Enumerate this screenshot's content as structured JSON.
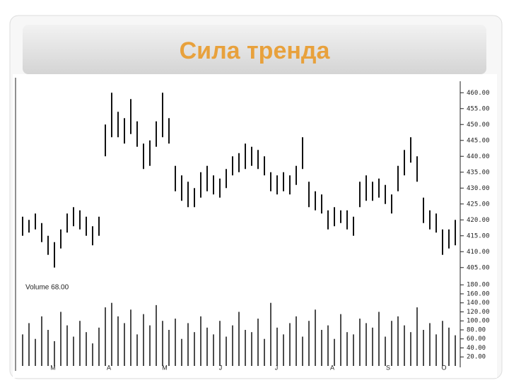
{
  "chart_data": [
    {
      "type": "range-bar",
      "title": "Сила тренда",
      "color": "#111111",
      "high": [
        421,
        420,
        422,
        419,
        415,
        413,
        417,
        422,
        424,
        423,
        421,
        418,
        421,
        450,
        460,
        454,
        452,
        458,
        451,
        444,
        445,
        451,
        460,
        452,
        437,
        434,
        432,
        430,
        435,
        437,
        434,
        433,
        436,
        440,
        441,
        444,
        443,
        442,
        440,
        435,
        434,
        435,
        434,
        437,
        446,
        432,
        429,
        428,
        423,
        424,
        423,
        423,
        421,
        432,
        434,
        432,
        433,
        431,
        428,
        437,
        442,
        446,
        440,
        427,
        423,
        422,
        417,
        417,
        420
      ],
      "low": [
        415,
        416,
        417,
        413,
        409,
        405,
        411,
        416,
        418,
        417,
        415,
        412,
        415,
        440,
        446,
        446,
        444,
        447,
        443,
        436,
        437,
        443,
        446,
        444,
        429,
        426,
        424,
        424,
        427,
        429,
        428,
        427,
        430,
        434,
        435,
        436,
        437,
        436,
        434,
        429,
        428,
        429,
        428,
        431,
        436,
        424,
        423,
        422,
        417,
        418,
        419,
        417,
        415,
        424,
        426,
        426,
        427,
        425,
        422,
        429,
        434,
        438,
        432,
        419,
        417,
        416,
        409,
        411,
        412
      ],
      "ylim": [
        402.5,
        462.5
      ],
      "yticks": [
        {
          "value": 460,
          "label": "460.00"
        },
        {
          "value": 455,
          "label": "455.00"
        },
        {
          "value": 450,
          "label": "450.00"
        },
        {
          "value": 445,
          "label": "445.00"
        },
        {
          "value": 440,
          "label": "440.00"
        },
        {
          "value": 435,
          "label": "435.00"
        },
        {
          "value": 430,
          "label": "430.00"
        },
        {
          "value": 425,
          "label": "425.00"
        },
        {
          "value": 420,
          "label": "420.00"
        },
        {
          "value": 415,
          "label": "415.00"
        },
        {
          "value": 410,
          "label": "410.00"
        },
        {
          "value": 405,
          "label": "405.00"
        }
      ]
    },
    {
      "type": "bar",
      "label": "Volume 68.00",
      "color": "#111111",
      "values": [
        70,
        95,
        60,
        110,
        80,
        55,
        120,
        90,
        65,
        100,
        75,
        50,
        85,
        130,
        140,
        110,
        95,
        125,
        70,
        115,
        90,
        135,
        100,
        80,
        105,
        60,
        95,
        75,
        110,
        85,
        70,
        100,
        65,
        90,
        120,
        80,
        75,
        105,
        60,
        140,
        85,
        70,
        95,
        110,
        65,
        100,
        125,
        80,
        90,
        60,
        115,
        75,
        70,
        105,
        95,
        85,
        120,
        65,
        100,
        110,
        90,
        75,
        130,
        80,
        95,
        70,
        100,
        85,
        68
      ],
      "ylim": [
        0,
        185
      ],
      "yticks": [
        {
          "value": 180,
          "label": "180.00"
        },
        {
          "value": 160,
          "label": "160.00"
        },
        {
          "value": 140,
          "label": "140.00"
        },
        {
          "value": 120,
          "label": "120.00"
        },
        {
          "value": 100,
          "label": "100.00"
        },
        {
          "value": 80,
          "label": "80.00"
        },
        {
          "value": 60,
          "label": "60.00"
        },
        {
          "value": 40,
          "label": "40.00"
        },
        {
          "value": 20,
          "label": "20.00"
        }
      ],
      "x_labels": [
        "M",
        "A",
        "M",
        "J",
        "J",
        "A",
        "S",
        "O"
      ]
    }
  ]
}
